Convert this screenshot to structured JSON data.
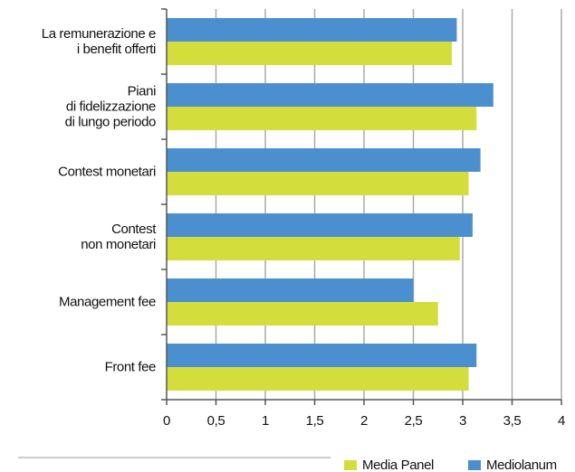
{
  "chart_data": {
    "type": "barh",
    "categories": [
      "La remunerazione e\ni benefit offerti",
      "Piani\ndi fidelizzazione\ndi lungo periodo",
      "Contest monetari",
      "Contest\nnon monetari",
      "Management fee",
      "Front fee"
    ],
    "series": [
      {
        "name": "Media Panel",
        "color": "#d3de3c",
        "values": [
          2.89,
          3.14,
          3.06,
          2.97,
          2.75,
          3.06
        ]
      },
      {
        "name": "Mediolanum",
        "color": "#4b8fcf",
        "values": [
          2.94,
          3.31,
          3.18,
          3.1,
          2.5,
          3.14
        ]
      }
    ],
    "xlim": [
      0,
      4
    ],
    "xticks": [
      0,
      {
        "value": 0.5,
        "label": "0,5"
      },
      1,
      {
        "value": 1.5,
        "label": "1,5"
      },
      2,
      {
        "value": 2.5,
        "label": "2,5"
      },
      3,
      {
        "value": 3.5,
        "label": "3,5"
      },
      4
    ],
    "grid": true
  }
}
